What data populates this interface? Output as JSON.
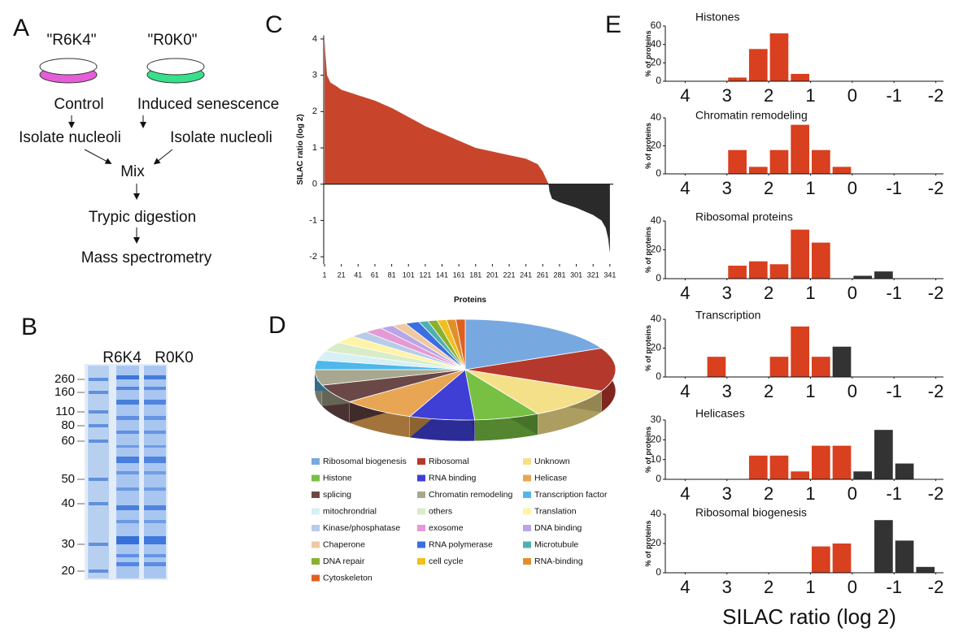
{
  "panel_labels": [
    "A",
    "B",
    "C",
    "D",
    "E"
  ],
  "workflow": {
    "labels": [
      "\"R6K4\"",
      "\"R0K0\""
    ],
    "conditions": [
      "Control",
      "Induced senescence"
    ],
    "isolation": [
      "Isolate nucleoli",
      "Isolate nucleoli"
    ],
    "steps": [
      "Mix",
      "Trypic digestion",
      "Mass spectrometry"
    ]
  },
  "gel": {
    "lanes": [
      "R6K4",
      "R0K0"
    ],
    "markers": [
      260,
      160,
      110,
      80,
      60,
      50,
      40,
      30,
      20
    ]
  },
  "chart_data": [
    {
      "type": "area",
      "y_label": "SILAC ratio (log 2)",
      "x_label": "Proteins",
      "x": [
        1,
        2,
        4,
        8,
        15,
        21,
        41,
        61,
        81,
        101,
        121,
        141,
        161,
        181,
        201,
        221,
        241,
        255,
        261,
        265,
        268,
        269,
        272,
        281,
        301,
        321,
        331,
        336,
        339,
        341
      ],
      "values": [
        4.0,
        3.6,
        3.0,
        2.8,
        2.7,
        2.6,
        2.45,
        2.3,
        2.1,
        1.85,
        1.6,
        1.4,
        1.2,
        1.0,
        0.9,
        0.8,
        0.7,
        0.55,
        0.35,
        0.15,
        0,
        -0.2,
        -0.4,
        -0.5,
        -0.65,
        -0.85,
        -1.0,
        -1.2,
        -1.5,
        -1.9
      ],
      "color": "#c8452c",
      "negative_color": "#2a2a2a",
      "xlim": [
        0,
        345
      ],
      "ylim": [
        -2.2,
        4.1
      ],
      "xticks": [
        1,
        21,
        41,
        61,
        81,
        101,
        121,
        141,
        161,
        181,
        201,
        221,
        241,
        261,
        281,
        301,
        321,
        341
      ],
      "yticks": [
        -2,
        -1,
        0,
        1,
        2,
        3,
        4
      ]
    },
    {
      "type": "pie",
      "categories": [
        "Ribosomal biogenesis",
        "Ribosomal",
        "Unknown",
        "Histone",
        "RNA binding",
        "Helicase",
        "splicing",
        "Chromatin remodeling",
        "Transcription factor",
        "mitochrondrial",
        "others",
        "Translation",
        "Kinase/phosphatase",
        "exosome",
        "DNA binding",
        "Chaperone",
        "RNA polymerase",
        "Microtubule",
        "DNA repair",
        "cell cycle",
        "RNA-binding",
        "Cytoskeleton"
      ],
      "values": [
        18,
        14,
        10,
        7,
        7,
        8,
        6,
        5,
        3,
        3,
        3,
        2.5,
        2,
        2,
        1.5,
        1.5,
        1.5,
        1,
        1,
        1,
        1,
        1
      ],
      "colors": [
        "#78a8e0",
        "#b5382c",
        "#f5e08a",
        "#77c043",
        "#3f3fd6",
        "#e8a654",
        "#6b4848",
        "#a8a890",
        "#4fb8e8",
        "#d6f0f5",
        "#d8ecc8",
        "#fff3a8",
        "#b8cce8",
        "#e49ad4",
        "#b9a6e6",
        "#f0c8a0",
        "#3a6fe0",
        "#4fb0b0",
        "#8ab030",
        "#f0c020",
        "#e0902a",
        "#e06020"
      ]
    },
    {
      "type": "histogram",
      "title": "Histones",
      "y_label": "% of proteins",
      "bins": [
        -2,
        -1.5,
        -1,
        -0.5,
        0,
        0.5,
        1,
        1.5,
        2,
        2.5,
        3,
        3.5
      ],
      "values": [
        0,
        0,
        0,
        0,
        0,
        0,
        8,
        52,
        35,
        4,
        0
      ],
      "colors": [
        "#333333",
        "#333333",
        "#333333",
        "#333333",
        "#d8401f",
        "#d8401f",
        "#d8401f",
        "#d8401f",
        "#d8401f",
        "#d8401f",
        "#d8401f"
      ],
      "xlim": [
        4.3,
        -2.3
      ],
      "xticks": [
        4,
        3,
        2,
        1,
        0,
        -1,
        -2
      ],
      "ylim": [
        0,
        60
      ],
      "yticks": [
        0,
        20,
        40,
        60
      ]
    },
    {
      "type": "histogram",
      "title": "Chromatin remodeling",
      "y_label": "% of proteins",
      "bins": [
        -2,
        -1.5,
        -1,
        -0.5,
        0,
        0.5,
        1,
        1.5,
        2,
        2.5,
        3,
        3.5
      ],
      "values": [
        0,
        0,
        0,
        0,
        5,
        17,
        35,
        17,
        5,
        17,
        0
      ],
      "colors": [
        "#333333",
        "#333333",
        "#333333",
        "#333333",
        "#d8401f",
        "#d8401f",
        "#d8401f",
        "#d8401f",
        "#d8401f",
        "#d8401f",
        "#d8401f"
      ],
      "xlim": [
        4.3,
        -2.3
      ],
      "xticks": [
        4,
        3,
        2,
        1,
        0,
        -1,
        -2
      ],
      "ylim": [
        0,
        40
      ],
      "yticks": [
        0,
        20,
        40
      ]
    },
    {
      "type": "histogram",
      "title": "Ribosomal proteins",
      "y_label": "% of proteins",
      "bins": [
        -2,
        -1.5,
        -1,
        -0.5,
        0,
        0.5,
        1,
        1.5,
        2,
        2.5,
        3,
        3.5
      ],
      "values": [
        0,
        0,
        5,
        2,
        0,
        25,
        34,
        10,
        12,
        9,
        0
      ],
      "colors": [
        "#333333",
        "#333333",
        "#333333",
        "#333333",
        "#d8401f",
        "#d8401f",
        "#d8401f",
        "#d8401f",
        "#d8401f",
        "#d8401f",
        "#d8401f"
      ],
      "xlim": [
        4.3,
        -2.3
      ],
      "xticks": [
        4,
        3,
        2,
        1,
        0,
        -1,
        -2
      ],
      "ylim": [
        0,
        40
      ],
      "yticks": [
        0,
        20,
        40
      ]
    },
    {
      "type": "histogram",
      "title": "Transcription",
      "y_label": "% of proteins",
      "bins": [
        -2,
        -1.5,
        -1,
        -0.5,
        0,
        0.5,
        1,
        1.5,
        2,
        2.5,
        3,
        3.5
      ],
      "values": [
        0,
        0,
        0,
        0,
        21,
        14,
        35,
        14,
        0,
        0,
        14
      ],
      "colors": [
        "#333333",
        "#333333",
        "#333333",
        "#333333",
        "#333333",
        "#d8401f",
        "#d8401f",
        "#d8401f",
        "#d8401f",
        "#d8401f",
        "#d8401f"
      ],
      "xlim": [
        4.3,
        -2.3
      ],
      "xticks": [
        4,
        3,
        2,
        1,
        0,
        -1,
        -2
      ],
      "ylim": [
        0,
        40
      ],
      "yticks": [
        0,
        20,
        40
      ]
    },
    {
      "type": "histogram",
      "title": "Helicases",
      "y_label": "% of proteins",
      "bins": [
        -2,
        -1.5,
        -1,
        -0.5,
        0,
        0.5,
        1,
        1.5,
        2,
        2.5,
        3,
        3.5
      ],
      "values": [
        0,
        8,
        25,
        4,
        17,
        17,
        4,
        12,
        12,
        0,
        0
      ],
      "colors": [
        "#333333",
        "#333333",
        "#333333",
        "#333333",
        "#d8401f",
        "#d8401f",
        "#d8401f",
        "#d8401f",
        "#d8401f",
        "#d8401f",
        "#d8401f"
      ],
      "xlim": [
        4.3,
        -2.3
      ],
      "xticks": [
        4,
        3,
        2,
        1,
        0,
        -1,
        -2
      ],
      "ylim": [
        0,
        30
      ],
      "yticks": [
        0,
        10,
        20,
        30
      ]
    },
    {
      "type": "histogram",
      "title": "Ribosomal biogenesis",
      "y_label": "% of proteins",
      "x_label": "SILAC ratio (log 2)",
      "bins": [
        -2,
        -1.5,
        -1,
        -0.5,
        0,
        0.5,
        1,
        1.5,
        2,
        2.5,
        3,
        3.5
      ],
      "values": [
        4,
        22,
        36,
        0,
        20,
        18,
        0,
        0,
        0,
        0,
        0
      ],
      "colors": [
        "#333333",
        "#333333",
        "#333333",
        "#333333",
        "#d8401f",
        "#d8401f",
        "#d8401f",
        "#d8401f",
        "#d8401f",
        "#d8401f",
        "#d8401f"
      ],
      "xlim": [
        4.3,
        -2.3
      ],
      "xticks": [
        4,
        3,
        2,
        1,
        0,
        -1,
        -2
      ],
      "ylim": [
        0,
        40
      ],
      "yticks": [
        0,
        20,
        40
      ]
    }
  ]
}
